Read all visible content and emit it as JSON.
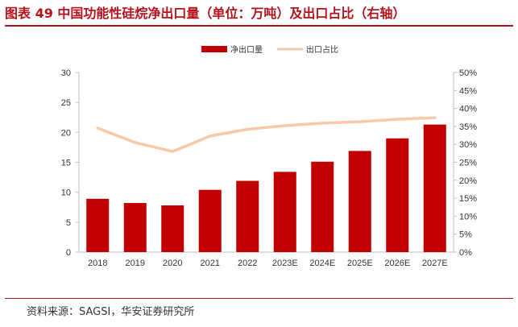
{
  "title": "图表 49 中国功能性硅烷净出口量（单位：万吨）及出口占比（右轴）",
  "source": "资料来源：SAGSI，华安证券研究所",
  "colors": {
    "bar": "#c00000",
    "line": "#f7c9a8",
    "title": "#b4121a",
    "axis": "#bfbfbf"
  },
  "chart_data": {
    "type": "bar",
    "categories": [
      "2018",
      "2019",
      "2020",
      "2021",
      "2022",
      "2023E",
      "2024E",
      "2025E",
      "2026E",
      "2027E"
    ],
    "series": [
      {
        "name": "净出口量",
        "type": "bar",
        "axis": "left",
        "values": [
          8.9,
          8.2,
          7.8,
          10.4,
          11.9,
          13.4,
          15.1,
          16.9,
          19.0,
          21.3
        ]
      },
      {
        "name": "出口占比",
        "type": "line",
        "axis": "right",
        "values": [
          34.5,
          30.5,
          28.0,
          32.3,
          34.2,
          35.2,
          35.9,
          36.3,
          37.0,
          37.4
        ]
      }
    ],
    "ylim_left": [
      0,
      30
    ],
    "yticks_left": [
      "0",
      "5",
      "10",
      "15",
      "20",
      "25",
      "30"
    ],
    "ylim_right": [
      0,
      50
    ],
    "yticks_right": [
      "0%",
      "5%",
      "10%",
      "15%",
      "20%",
      "25%",
      "30%",
      "35%",
      "40%",
      "45%",
      "50%"
    ],
    "legend_position": "top-center",
    "grid": false
  }
}
